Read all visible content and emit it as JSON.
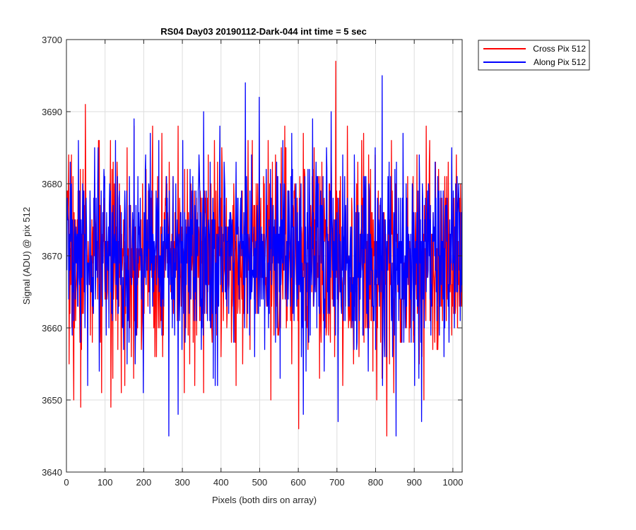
{
  "chart_data": {
    "type": "line",
    "title": "RS04 Day03 20190112-Dark-044 int time = 5 sec",
    "xlabel": "Pixels (both dirs on array)",
    "ylabel": "Signal (ADU) @ pix 512",
    "xlim": [
      0,
      1024
    ],
    "ylim": [
      3640,
      3700
    ],
    "xticks": [
      0,
      100,
      200,
      300,
      400,
      500,
      600,
      700,
      800,
      900,
      1000
    ],
    "yticks": [
      3640,
      3650,
      3660,
      3670,
      3680,
      3690,
      3700
    ],
    "x_tick_labels": [
      "0",
      "100",
      "200",
      "300",
      "400",
      "500",
      "600",
      "700",
      "800",
      "900",
      "1000"
    ],
    "y_tick_labels": [
      "3640",
      "3650",
      "3660",
      "3670",
      "3680",
      "3690",
      "3700"
    ],
    "grid": true,
    "legend_position": "outside-top-right",
    "series": [
      {
        "name": "Cross Pix 512",
        "color": "#ff0000",
        "mean": 3669.5,
        "std": 6.5,
        "clip": [
          3649,
          3686
        ],
        "seed": 7,
        "values": [
          3670,
          3655,
          3684,
          3650,
          3665,
          3676,
          3649,
          3682,
          3691,
          3662,
          3674,
          3658,
          3680,
          3668,
          3663,
          3686,
          3651,
          3678,
          3660,
          3672,
          3649,
          3683,
          3666,
          3657,
          3677,
          3669,
          3652,
          3685,
          3661,
          3648,
          3671,
          3688,
          3659,
          3667,
          3675,
          3654,
          3681,
          3663,
          3670,
          3688,
          3656,
          3673,
          3664,
          3687,
          3651,
          3676,
          3679,
          3658,
          3668,
          3662,
          3674,
          3688,
          3667,
          3671,
          3661,
          3682,
          3655,
          3669,
          3679,
          3666,
          3659,
          3673,
          3678,
          3651,
          3672,
          3684,
          3660,
          3675,
          3665,
          3683,
          3670,
          3682,
          3677,
          3660,
          3673,
          3666,
          3658,
          3680,
          3652,
          3674,
          3669,
          3663,
          3688,
          3671,
          3657,
          3686,
          3677,
          3662,
          3681,
          3656,
          3668,
          3679,
          3665,
          3676,
          3650,
          3673,
          3684,
          3659,
          3672,
          3667,
          3688,
          3661,
          3670,
          3694,
          3655,
          3679,
          3666,
          3646,
          3668,
          3687,
          3672,
          3657,
          3664,
          3681,
          3675,
          3669,
          3653,
          3683,
          3667,
          3678,
          3660,
          3671,
          3686,
          3664,
          3697,
          3659,
          3681,
          3652,
          3673,
          3688,
          3661,
          3676,
          3670,
          3665,
          3680,
          3656,
          3674,
          3687,
          3663,
          3671,
          3682,
          3654,
          3684,
          3660,
          3677,
          3653,
          3668,
          3645,
          3649,
          3675,
          3686,
          3651,
          3672,
          3666,
          3658,
          3677,
          3669,
          3681,
          3660,
          3674,
          3663,
          3684,
          3655,
          3679,
          3667,
          3650,
          3688,
          3672,
          3662,
          3676,
          3683,
          3657,
          3670,
          3661,
          3681,
          3668,
          3673,
          3659,
          3651,
          3678,
          3684,
          3666,
          3664
        ]
      },
      {
        "name": "Along Pix 512",
        "color": "#0000ff",
        "mean": 3670,
        "std": 6.0,
        "clip": [
          3650,
          3686
        ],
        "seed": 31,
        "values": [
          3668,
          3680,
          3661,
          3674,
          3686,
          3658,
          3676,
          3666,
          3652,
          3679,
          3663,
          3685,
          3672,
          3654,
          3669,
          3682,
          3659,
          3674,
          3665,
          3677,
          3686,
          3662,
          3671,
          3660,
          3679,
          3655,
          3681,
          3666,
          3689,
          3659,
          3676,
          3668,
          3651,
          3684,
          3672,
          3687,
          3663,
          3670,
          3678,
          3666,
          3659,
          3675,
          3681,
          3645,
          3672,
          3664,
          3680,
          3648,
          3676,
          3686,
          3658,
          3674,
          3669,
          3679,
          3661,
          3670,
          3684,
          3657,
          3690,
          3666,
          3674,
          3660,
          3678,
          3652,
          3688,
          3667,
          3681,
          3663,
          3675,
          3670,
          3658,
          3683,
          3666,
          3678,
          3672,
          3694,
          3662,
          3679,
          3667,
          3656,
          3675,
          3692,
          3664,
          3673,
          3682,
          3660,
          3671,
          3677,
          3658,
          3681,
          3653,
          3669,
          3678,
          3663,
          3675,
          3687,
          3661,
          3672,
          3666,
          3680,
          3648,
          3674,
          3682,
          3659,
          3689,
          3667,
          3681,
          3662,
          3677,
          3654,
          3685,
          3670,
          3690,
          3663,
          3675,
          3647,
          3672,
          3684,
          3661,
          3678,
          3668,
          3660,
          3684,
          3657,
          3676,
          3670,
          3681,
          3654,
          3673,
          3664,
          3685,
          3678,
          3667,
          3695,
          3656,
          3672,
          3683,
          3661,
          3676,
          3645,
          3678,
          3669,
          3687,
          3660,
          3674,
          3666,
          3680,
          3652,
          3676,
          3684,
          3647,
          3671,
          3665,
          3680,
          3659,
          3676,
          3668,
          3681,
          3663,
          3672,
          3660,
          3678,
          3666,
          3685,
          3670,
          3676,
          3680,
          3665
        ]
      }
    ]
  }
}
